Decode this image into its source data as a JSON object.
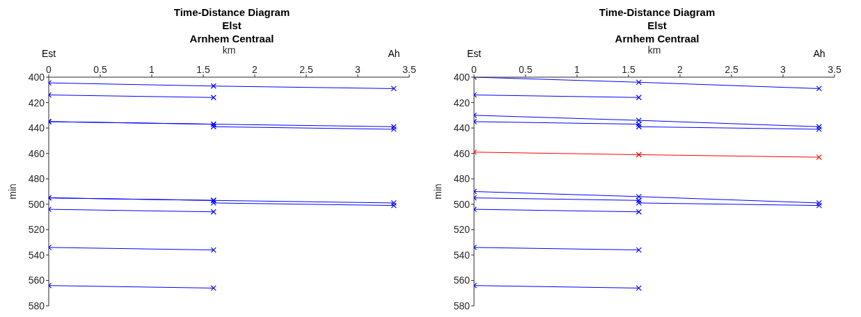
{
  "chart_data": [
    {
      "type": "line",
      "title": "Time-Distance Diagram",
      "subtitle": "Elst\nArnhem Centraal",
      "xlabel": "km",
      "ylabel": "min",
      "marker": "cross",
      "line_style": "solid",
      "xlim": [
        0,
        3.5
      ],
      "xticks": [
        0,
        0.5,
        1,
        1.5,
        2,
        2.5,
        3,
        3.5
      ],
      "annotations": [
        "Est",
        "Ah"
      ],
      "ylim": [
        580,
        400
      ],
      "yticks": [
        400,
        420,
        440,
        460,
        480,
        500,
        520,
        540,
        560,
        580
      ],
      "series": [
        {
          "color": "#0000ff",
          "x": [
            0,
            1.6,
            3.35
          ],
          "values": [
            404.5,
            407,
            409
          ]
        },
        {
          "color": "#0000ff",
          "x": [
            0,
            1.6
          ],
          "values": [
            414,
            416
          ]
        },
        {
          "color": "#0000ff",
          "x": [
            0,
            1.6,
            3.35
          ],
          "values": [
            435,
            437,
            439
          ]
        },
        {
          "color": "#0000ff",
          "x": [
            0,
            1.6,
            1.6,
            3.35
          ],
          "values": [
            435,
            437,
            439,
            441
          ]
        },
        {
          "color": "#0000ff",
          "x": [
            0,
            1.6,
            3.35
          ],
          "values": [
            495,
            497,
            499
          ]
        },
        {
          "color": "#0000ff",
          "x": [
            0,
            1.6,
            1.6,
            3.35
          ],
          "values": [
            495,
            497,
            499,
            501
          ]
        },
        {
          "color": "#0000ff",
          "x": [
            0,
            1.6
          ],
          "values": [
            504,
            506
          ]
        },
        {
          "color": "#0000ff",
          "x": [
            0,
            1.6
          ],
          "values": [
            534,
            536
          ]
        },
        {
          "color": "#0000ff",
          "x": [
            0,
            1.6
          ],
          "values": [
            564,
            566
          ]
        }
      ]
    },
    {
      "type": "line",
      "title": "Time-Distance Diagram",
      "subtitle": "Elst\nArnhem Centraal",
      "xlabel": "km",
      "ylabel": "min",
      "marker": "cross",
      "line_style": "solid",
      "xlim": [
        0,
        3.5
      ],
      "xticks": [
        0,
        0.5,
        1,
        1.5,
        2,
        2.5,
        3,
        3.5
      ],
      "annotations": [
        "Est",
        "Ah"
      ],
      "ylim": [
        580,
        400
      ],
      "yticks": [
        400,
        420,
        440,
        460,
        480,
        500,
        520,
        540,
        560,
        580
      ],
      "series": [
        {
          "color": "#0000ff",
          "x": [
            0,
            1.6,
            3.35
          ],
          "values": [
            400,
            404,
            409
          ]
        },
        {
          "color": "#0000ff",
          "x": [
            0,
            1.6
          ],
          "values": [
            414,
            416
          ]
        },
        {
          "color": "#0000ff",
          "x": [
            0,
            1.6,
            3.35
          ],
          "values": [
            430,
            434,
            439
          ]
        },
        {
          "color": "#0000ff",
          "x": [
            0,
            1.6,
            1.6,
            3.35
          ],
          "values": [
            435,
            437,
            439,
            441
          ]
        },
        {
          "color": "#ff0000",
          "x": [
            0,
            1.6,
            3.35
          ],
          "values": [
            459,
            461,
            463
          ]
        },
        {
          "color": "#0000ff",
          "x": [
            0,
            1.6,
            3.35
          ],
          "values": [
            490,
            494,
            499
          ]
        },
        {
          "color": "#0000ff",
          "x": [
            0,
            1.6,
            1.6,
            3.35
          ],
          "values": [
            495,
            497,
            499,
            501
          ]
        },
        {
          "color": "#0000ff",
          "x": [
            0,
            1.6
          ],
          "values": [
            504,
            506
          ]
        },
        {
          "color": "#0000ff",
          "x": [
            0,
            1.6
          ],
          "values": [
            534,
            536
          ]
        },
        {
          "color": "#0000ff",
          "x": [
            0,
            1.6
          ],
          "values": [
            564,
            566
          ]
        }
      ]
    }
  ]
}
